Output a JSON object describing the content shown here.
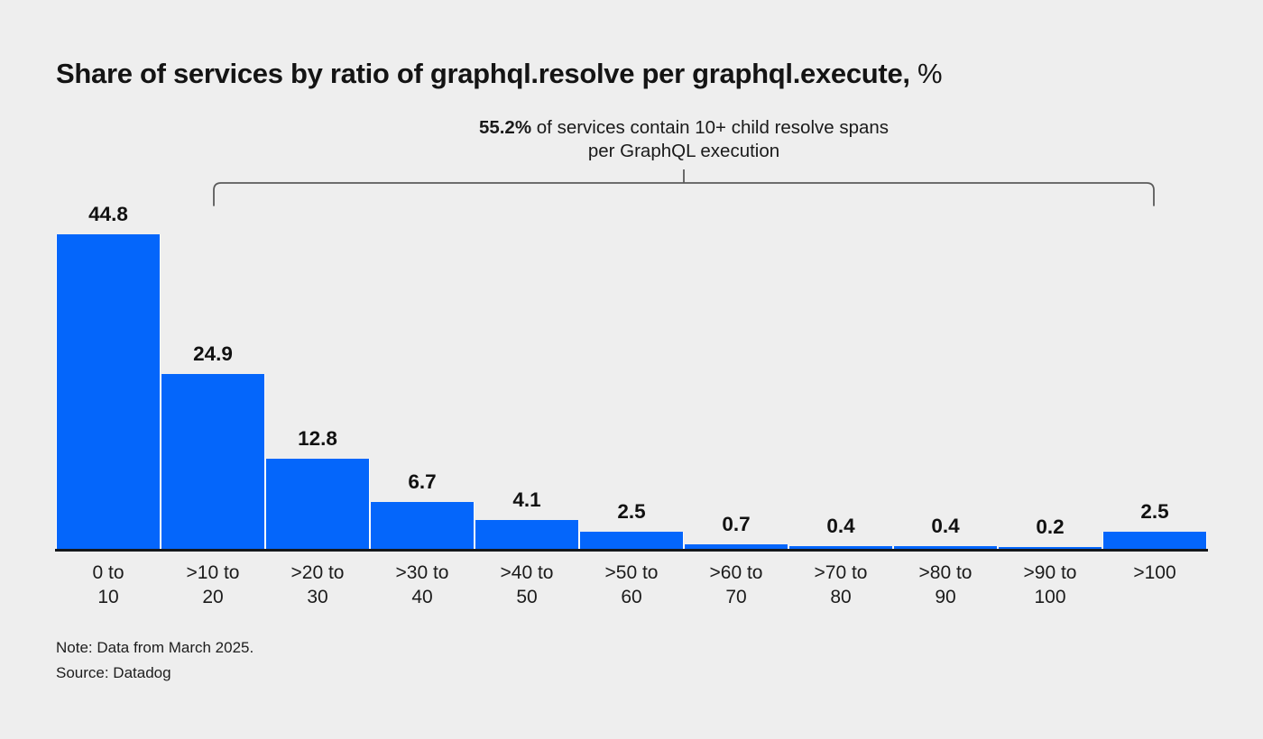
{
  "title": {
    "main": "Share of services by ratio of graphql.resolve per graphql.execute,",
    "suffix": " %"
  },
  "annotation": {
    "highlight": "55.2%",
    "line1_rest": " of services contain 10+ child resolve spans",
    "line2": "per GraphQL execution"
  },
  "chart_data": {
    "type": "bar",
    "title": "Share of services by ratio of graphql.resolve per graphql.execute, %",
    "categories": [
      [
        "0 to",
        "10"
      ],
      [
        ">10 to",
        "20"
      ],
      [
        ">20 to",
        "30"
      ],
      [
        ">30 to",
        "40"
      ],
      [
        ">40 to",
        "50"
      ],
      [
        ">50 to",
        "60"
      ],
      [
        ">60 to",
        "70"
      ],
      [
        ">70 to",
        "80"
      ],
      [
        ">80 to",
        "90"
      ],
      [
        ">90 to",
        "100"
      ],
      [
        ">100"
      ]
    ],
    "values": [
      44.8,
      24.9,
      12.8,
      6.7,
      4.1,
      2.5,
      0.7,
      0.4,
      0.4,
      0.2,
      2.5
    ],
    "value_labels": [
      "44.8",
      "24.9",
      "12.8",
      "6.7",
      "4.1",
      "2.5",
      "0.7",
      "0.4",
      "0.4",
      "0.2",
      "2.5"
    ],
    "xlabel": "",
    "ylabel": "",
    "unit": "%",
    "ylim": [
      0,
      45.5
    ],
    "grid": false,
    "legend": "none",
    "bracket_note": "55.2% of services contain 10+ child resolve spans per GraphQL execution",
    "bracket_covers_categories": [
      ">10 to 20",
      ">100"
    ]
  },
  "footer": {
    "note": "Note: Data from March 2025.",
    "source": "Source: Datadog"
  },
  "colors": {
    "background": "#eeeeee",
    "bar": "#0466fb",
    "bar_gap": "#fbfbfb",
    "axis": "#15181c",
    "bracket": "#5a5a5a",
    "title_text": "#111111",
    "body_text": "#1a1a1a"
  }
}
